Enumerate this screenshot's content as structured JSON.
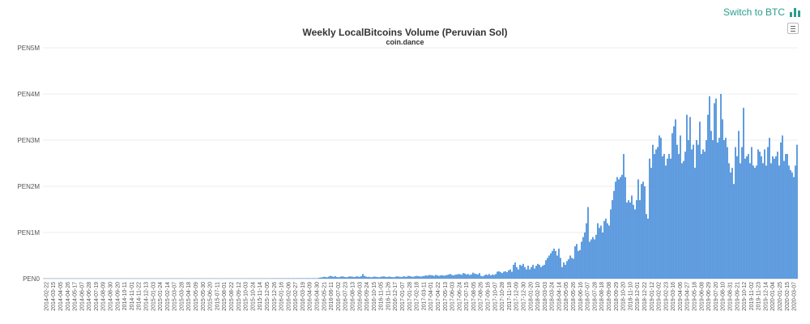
{
  "header": {
    "switch_label": "Switch to BTC",
    "switch_icon": "bar-chart-icon",
    "menu_icon": "hamburger-menu-icon"
  },
  "chart_data": {
    "type": "bar",
    "title": "Weekly LocalBitcoins Volume (Peruvian Sol)",
    "subtitle": "coin.dance",
    "ylim": [
      0,
      5000000
    ],
    "y_ticks": [
      "PEN0",
      "PEN1M",
      "PEN2M",
      "PEN3M",
      "PEN4M",
      "PEN5M"
    ],
    "x_tick_labels": [
      "2014-02-22",
      "2014-03-15",
      "2014-04-05",
      "2014-04-26",
      "2014-05-17",
      "2014-06-07",
      "2014-06-28",
      "2014-07-19",
      "2014-08-09",
      "2014-08-30",
      "2014-09-20",
      "2014-10-11",
      "2014-11-01",
      "2014-11-22",
      "2014-12-13",
      "2015-01-03",
      "2015-01-24",
      "2015-02-14",
      "2015-03-07",
      "2015-03-28",
      "2015-04-18",
      "2015-05-09",
      "2015-05-30",
      "2015-06-20",
      "2015-07-11",
      "2015-08-01",
      "2015-08-22",
      "2015-09-12",
      "2015-10-03",
      "2015-10-24",
      "2015-11-14",
      "2015-12-05",
      "2015-12-26",
      "2016-01-16",
      "2016-02-06",
      "2016-02-27",
      "2016-03-19",
      "2016-04-09",
      "2016-04-30",
      "2016-05-21",
      "2016-06-11",
      "2016-07-02",
      "2016-07-23",
      "2016-08-13",
      "2016-09-03",
      "2016-09-24",
      "2016-10-15",
      "2016-11-05",
      "2016-11-26",
      "2016-12-17",
      "2017-01-07",
      "2017-01-28",
      "2017-02-18",
      "2017-03-11",
      "2017-04-01",
      "2017-04-22",
      "2017-05-13",
      "2017-06-03",
      "2017-06-24",
      "2017-07-15",
      "2017-08-05",
      "2017-08-26",
      "2017-09-16",
      "2017-10-07",
      "2017-10-28",
      "2017-11-18",
      "2017-12-09",
      "2017-12-30",
      "2018-01-20",
      "2018-02-10",
      "2018-03-03",
      "2018-03-24",
      "2018-04-14",
      "2018-05-05",
      "2018-05-26",
      "2018-06-16",
      "2018-07-07",
      "2018-07-28",
      "2018-08-18",
      "2018-09-08",
      "2018-09-29",
      "2018-10-20",
      "2018-11-10",
      "2018-12-01",
      "2018-12-22",
      "2019-01-12",
      "2019-02-02",
      "2019-02-23",
      "2019-03-16",
      "2019-04-06",
      "2019-04-27",
      "2019-05-18",
      "2019-06-08",
      "2019-06-29",
      "2019-07-20",
      "2019-08-10",
      "2019-08-31",
      "2019-09-21",
      "2019-10-12",
      "2019-11-02",
      "2019-11-23",
      "2019-12-14",
      "2020-01-04",
      "2020-01-25",
      "2020-02-15",
      "2020-03-07"
    ],
    "values": [
      2000,
      1500,
      3000,
      2500,
      2000,
      4000,
      3000,
      2500,
      3000,
      2000,
      3500,
      2500,
      4000,
      3000,
      2500,
      3000,
      2000,
      3500,
      2500,
      3000,
      3000,
      2000,
      2500,
      4000,
      3000,
      2500,
      2000,
      3000,
      3500,
      2500,
      2000,
      3000,
      2500,
      2000,
      3500,
      3000,
      2500,
      4000,
      2000,
      3000,
      4000,
      3000,
      5000,
      3500,
      3000,
      4000,
      3000,
      5000,
      4000,
      3000,
      3000,
      4000,
      3000,
      5000,
      4000,
      3500,
      3000,
      4000,
      3000,
      4000,
      4000,
      5000,
      3000,
      4000,
      3000,
      5000,
      4000,
      3000,
      4000,
      3000,
      5000,
      4000,
      3000,
      4000,
      5000,
      3000,
      4000,
      3000,
      5000,
      4000,
      6000,
      4000,
      5000,
      3000,
      4000,
      6000,
      5000,
      3000,
      4000,
      5000,
      4000,
      3000,
      5000,
      4000,
      6000,
      5000,
      4000,
      3000,
      5000,
      4000,
      5000,
      4000,
      6000,
      5000,
      4000,
      5000,
      6000,
      4000,
      5000,
      4000,
      6000,
      5000,
      4000,
      5000,
      6000,
      4000,
      5000,
      6000,
      4000,
      5000,
      6000,
      5000,
      4000,
      6000,
      5000,
      4000,
      7000,
      5000,
      6000,
      4000,
      7000,
      6000,
      5000,
      7000,
      6000,
      5000,
      6000,
      7000,
      5000,
      6000,
      7000,
      8000,
      6000,
      7000,
      9000,
      8000,
      7000,
      9000,
      8000,
      7000,
      8000,
      9000,
      7000,
      8000,
      10000,
      9000,
      8000,
      10000,
      9000,
      8000,
      10000,
      9000,
      8000,
      11000,
      10000,
      9000,
      10000,
      11000,
      9000,
      10000,
      20000,
      25000,
      30000,
      40000,
      35000,
      30000,
      45000,
      60000,
      50000,
      40000,
      55000,
      35000,
      30000,
      40000,
      50000,
      45000,
      35000,
      30000,
      40000,
      50000,
      45000,
      40000,
      35000,
      50000,
      45000,
      40000,
      55000,
      100000,
      60000,
      45000,
      35000,
      40000,
      30000,
      35000,
      45000,
      40000,
      35000,
      30000,
      40000,
      45000,
      50000,
      40000,
      35000,
      45000,
      40000,
      35000,
      30000,
      40000,
      50000,
      45000,
      40000,
      35000,
      50000,
      45000,
      40000,
      60000,
      55000,
      45000,
      40000,
      50000,
      60000,
      55000,
      50000,
      45000,
      55000,
      60000,
      70000,
      65000,
      80000,
      75000,
      70000,
      60000,
      80000,
      70000,
      60000,
      70000,
      75000,
      65000,
      70000,
      80000,
      90000,
      100000,
      80000,
      70000,
      85000,
      90000,
      100000,
      95000,
      85000,
      120000,
      110000,
      90000,
      100000,
      80000,
      90000,
      130000,
      110000,
      100000,
      90000,
      120000,
      60000,
      50000,
      70000,
      90000,
      80000,
      100000,
      70000,
      90000,
      80000,
      100000,
      150000,
      160000,
      140000,
      120000,
      150000,
      160000,
      140000,
      180000,
      200000,
      150000,
      300000,
      350000,
      250000,
      200000,
      300000,
      280000,
      320000,
      250000,
      200000,
      280000,
      200000,
      250000,
      300000,
      220000,
      280000,
      320000,
      300000,
      250000,
      280000,
      300000,
      400000,
      450000,
      500000,
      550000,
      600000,
      650000,
      600000,
      500000,
      650000,
      450000,
      250000,
      350000,
      300000,
      380000,
      420000,
      500000,
      450000,
      430000,
      700000,
      750000,
      600000,
      620000,
      800000,
      900000,
      1000000,
      1200000,
      1550000,
      800000,
      850000,
      900000,
      850000,
      950000,
      1200000,
      1100000,
      1150000,
      1000000,
      1250000,
      1300000,
      1200000,
      1150000,
      1500000,
      1700000,
      1900000,
      2100000,
      2200000,
      2150000,
      2200000,
      2250000,
      2700000,
      2200000,
      1650000,
      1700000,
      1650000,
      1800000,
      1600000,
      1500000,
      1700000,
      2150000,
      1700000,
      2050000,
      2100000,
      2000000,
      1400000,
      1300000,
      2600000,
      2400000,
      2900000,
      2700000,
      2800000,
      2850000,
      3100000,
      3050000,
      2650000,
      2700000,
      2450000,
      2600000,
      2700000,
      2600000,
      3150000,
      3300000,
      3450000,
      2900000,
      2700000,
      3100000,
      2500000,
      2550000,
      2750000,
      3550000,
      3000000,
      3500000,
      2800000,
      2900000,
      2400000,
      3000000,
      2900000,
      3400000,
      2700000,
      2800000,
      2750000,
      3000000,
      3550000,
      3950000,
      3200000,
      3000000,
      3800000,
      3900000,
      2950000,
      3050000,
      4000000,
      3450000,
      3000000,
      3050000,
      2850000,
      2500000,
      2300000,
      2400000,
      2050000,
      2850000,
      2650000,
      3200000,
      2500000,
      2850000,
      3700000,
      2600000,
      2650000,
      2700000,
      2500000,
      2850000,
      2450000,
      2400000,
      2450000,
      2800000,
      2750000,
      2650000,
      2500000,
      2800000,
      2450000,
      2850000,
      3050000,
      2500000,
      2650000,
      2600000,
      2650000,
      2750000,
      2450000,
      2950000,
      3100000,
      2550000,
      2700000,
      2700000,
      2450000,
      2350000,
      2300000,
      2200000,
      2450000,
      2900000
    ]
  }
}
